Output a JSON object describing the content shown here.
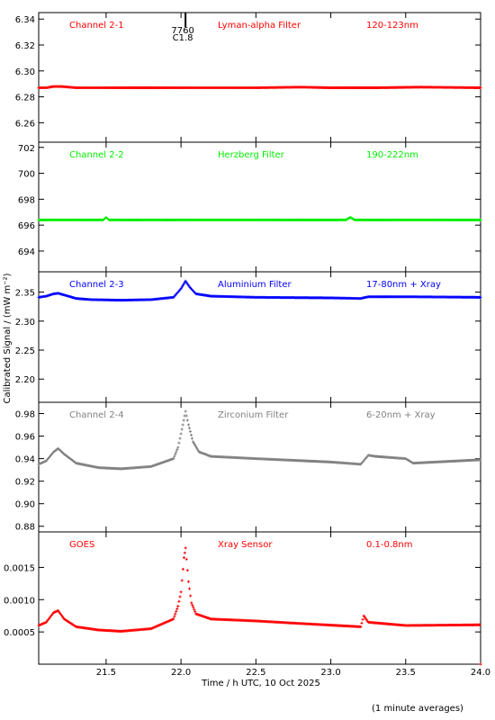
{
  "figure": {
    "xlabel": "Time / h UTC, 10 Oct 2025",
    "ylabel": "Calibrated Signal / (mW m⁻²)",
    "footnote": "(1 minute averages)",
    "event_marker": {
      "label_top": "7760",
      "label_bottom": "C1.8",
      "x": 22.03
    }
  },
  "chart_data": [
    {
      "type": "scatter",
      "channel": "Channel 2-1",
      "filter": "Lyman-alpha Filter",
      "band": "120-123nm",
      "color": "#ff0000",
      "xlim": [
        21.05,
        24.0
      ],
      "ylim": [
        6.245,
        6.345
      ],
      "yticks": [
        "6.26",
        "6.28",
        "6.30",
        "6.32",
        "6.34"
      ],
      "x": [
        21.05,
        21.1,
        21.15,
        21.2,
        21.3,
        21.5,
        22.0,
        22.5,
        22.8,
        23.0,
        23.3,
        23.6,
        24.0
      ],
      "y": [
        6.287,
        6.287,
        6.288,
        6.288,
        6.287,
        6.287,
        6.287,
        6.287,
        6.2875,
        6.287,
        6.287,
        6.2875,
        6.287
      ]
    },
    {
      "type": "scatter",
      "channel": "Channel 2-2",
      "filter": "Herzberg Filter",
      "band": "190-222nm",
      "color": "#00ee00",
      "xlim": [
        21.05,
        24.0
      ],
      "ylim": [
        692.4,
        702.4
      ],
      "yticks": [
        "694",
        "696",
        "698",
        "700",
        "702"
      ],
      "x": [
        21.05,
        21.3,
        21.48,
        21.5,
        21.52,
        21.8,
        22.0,
        22.5,
        23.0,
        23.1,
        23.13,
        23.16,
        23.5,
        24.0
      ],
      "y": [
        696.4,
        696.4,
        696.4,
        696.6,
        696.4,
        696.4,
        696.4,
        696.4,
        696.4,
        696.4,
        696.6,
        696.4,
        696.4,
        696.4
      ]
    },
    {
      "type": "scatter",
      "channel": "Channel 2-3",
      "filter": "Aluminium Filter",
      "band": "17-80nm + Xray",
      "color": "#0000ff",
      "xlim": [
        21.05,
        24.0
      ],
      "ylim": [
        2.16,
        2.385
      ],
      "yticks": [
        "2.20",
        "2.25",
        "2.30",
        "2.35"
      ],
      "x": [
        21.05,
        21.1,
        21.15,
        21.18,
        21.22,
        21.3,
        21.4,
        21.6,
        21.8,
        21.95,
        22.0,
        22.03,
        22.06,
        22.1,
        22.2,
        22.5,
        23.0,
        23.2,
        23.25,
        23.5,
        24.0
      ],
      "y": [
        2.341,
        2.343,
        2.347,
        2.348,
        2.345,
        2.339,
        2.337,
        2.336,
        2.337,
        2.341,
        2.356,
        2.369,
        2.358,
        2.347,
        2.343,
        2.341,
        2.34,
        2.339,
        2.342,
        2.342,
        2.341
      ]
    },
    {
      "type": "scatter",
      "channel": "Channel 2-4",
      "filter": "Zirconium Filter",
      "band": "6-20nm + Xray",
      "color": "#808080",
      "xlim": [
        21.05,
        24.0
      ],
      "ylim": [
        0.875,
        0.99
      ],
      "yticks": [
        "0.88",
        "0.90",
        "0.92",
        "0.94",
        "0.96",
        "0.98"
      ],
      "x": [
        21.05,
        21.1,
        21.15,
        21.18,
        21.22,
        21.3,
        21.45,
        21.6,
        21.8,
        21.95,
        21.98,
        22.0,
        22.03,
        22.05,
        22.08,
        22.12,
        22.2,
        22.5,
        23.0,
        23.2,
        23.25,
        23.3,
        23.5,
        23.55,
        24.0
      ],
      "y": [
        0.935,
        0.938,
        0.946,
        0.949,
        0.944,
        0.936,
        0.932,
        0.931,
        0.933,
        0.94,
        0.95,
        0.962,
        0.982,
        0.97,
        0.955,
        0.946,
        0.942,
        0.94,
        0.937,
        0.935,
        0.943,
        0.942,
        0.94,
        0.936,
        0.939
      ]
    },
    {
      "type": "scatter",
      "channel": "GOES",
      "filter": "Xray Sensor",
      "band": "0.1-0.8nm",
      "color": "#ff0000",
      "xlim": [
        21.05,
        24.0
      ],
      "ylim": [
        0.0,
        0.00205
      ],
      "yticks": [
        "0.0005",
        "0.0010",
        "0.0015"
      ],
      "x": [
        21.05,
        21.1,
        21.15,
        21.18,
        21.22,
        21.3,
        21.45,
        21.6,
        21.8,
        21.95,
        21.98,
        22.0,
        22.02,
        22.03,
        22.05,
        22.07,
        22.1,
        22.2,
        22.5,
        22.8,
        23.2,
        23.22,
        23.25,
        23.5,
        24.0,
        24.0
      ],
      "y": [
        0.0006,
        0.00065,
        0.0008,
        0.00083,
        0.0007,
        0.00058,
        0.00053,
        0.00051,
        0.00055,
        0.0007,
        0.0009,
        0.00112,
        0.00165,
        0.0018,
        0.00128,
        0.00095,
        0.00078,
        0.0007,
        0.00067,
        0.00063,
        0.00058,
        0.00075,
        0.00065,
        0.0006,
        0.00061,
        0.0
      ]
    }
  ],
  "xaxis": {
    "xlim": [
      21.05,
      24.0
    ],
    "tick_values": [
      21.5,
      22.0,
      22.5,
      23.0,
      23.5,
      24.0
    ],
    "tick_labels": [
      "21.5",
      "22.0",
      "22.5",
      "23.0",
      "23.5",
      "24.0"
    ]
  }
}
